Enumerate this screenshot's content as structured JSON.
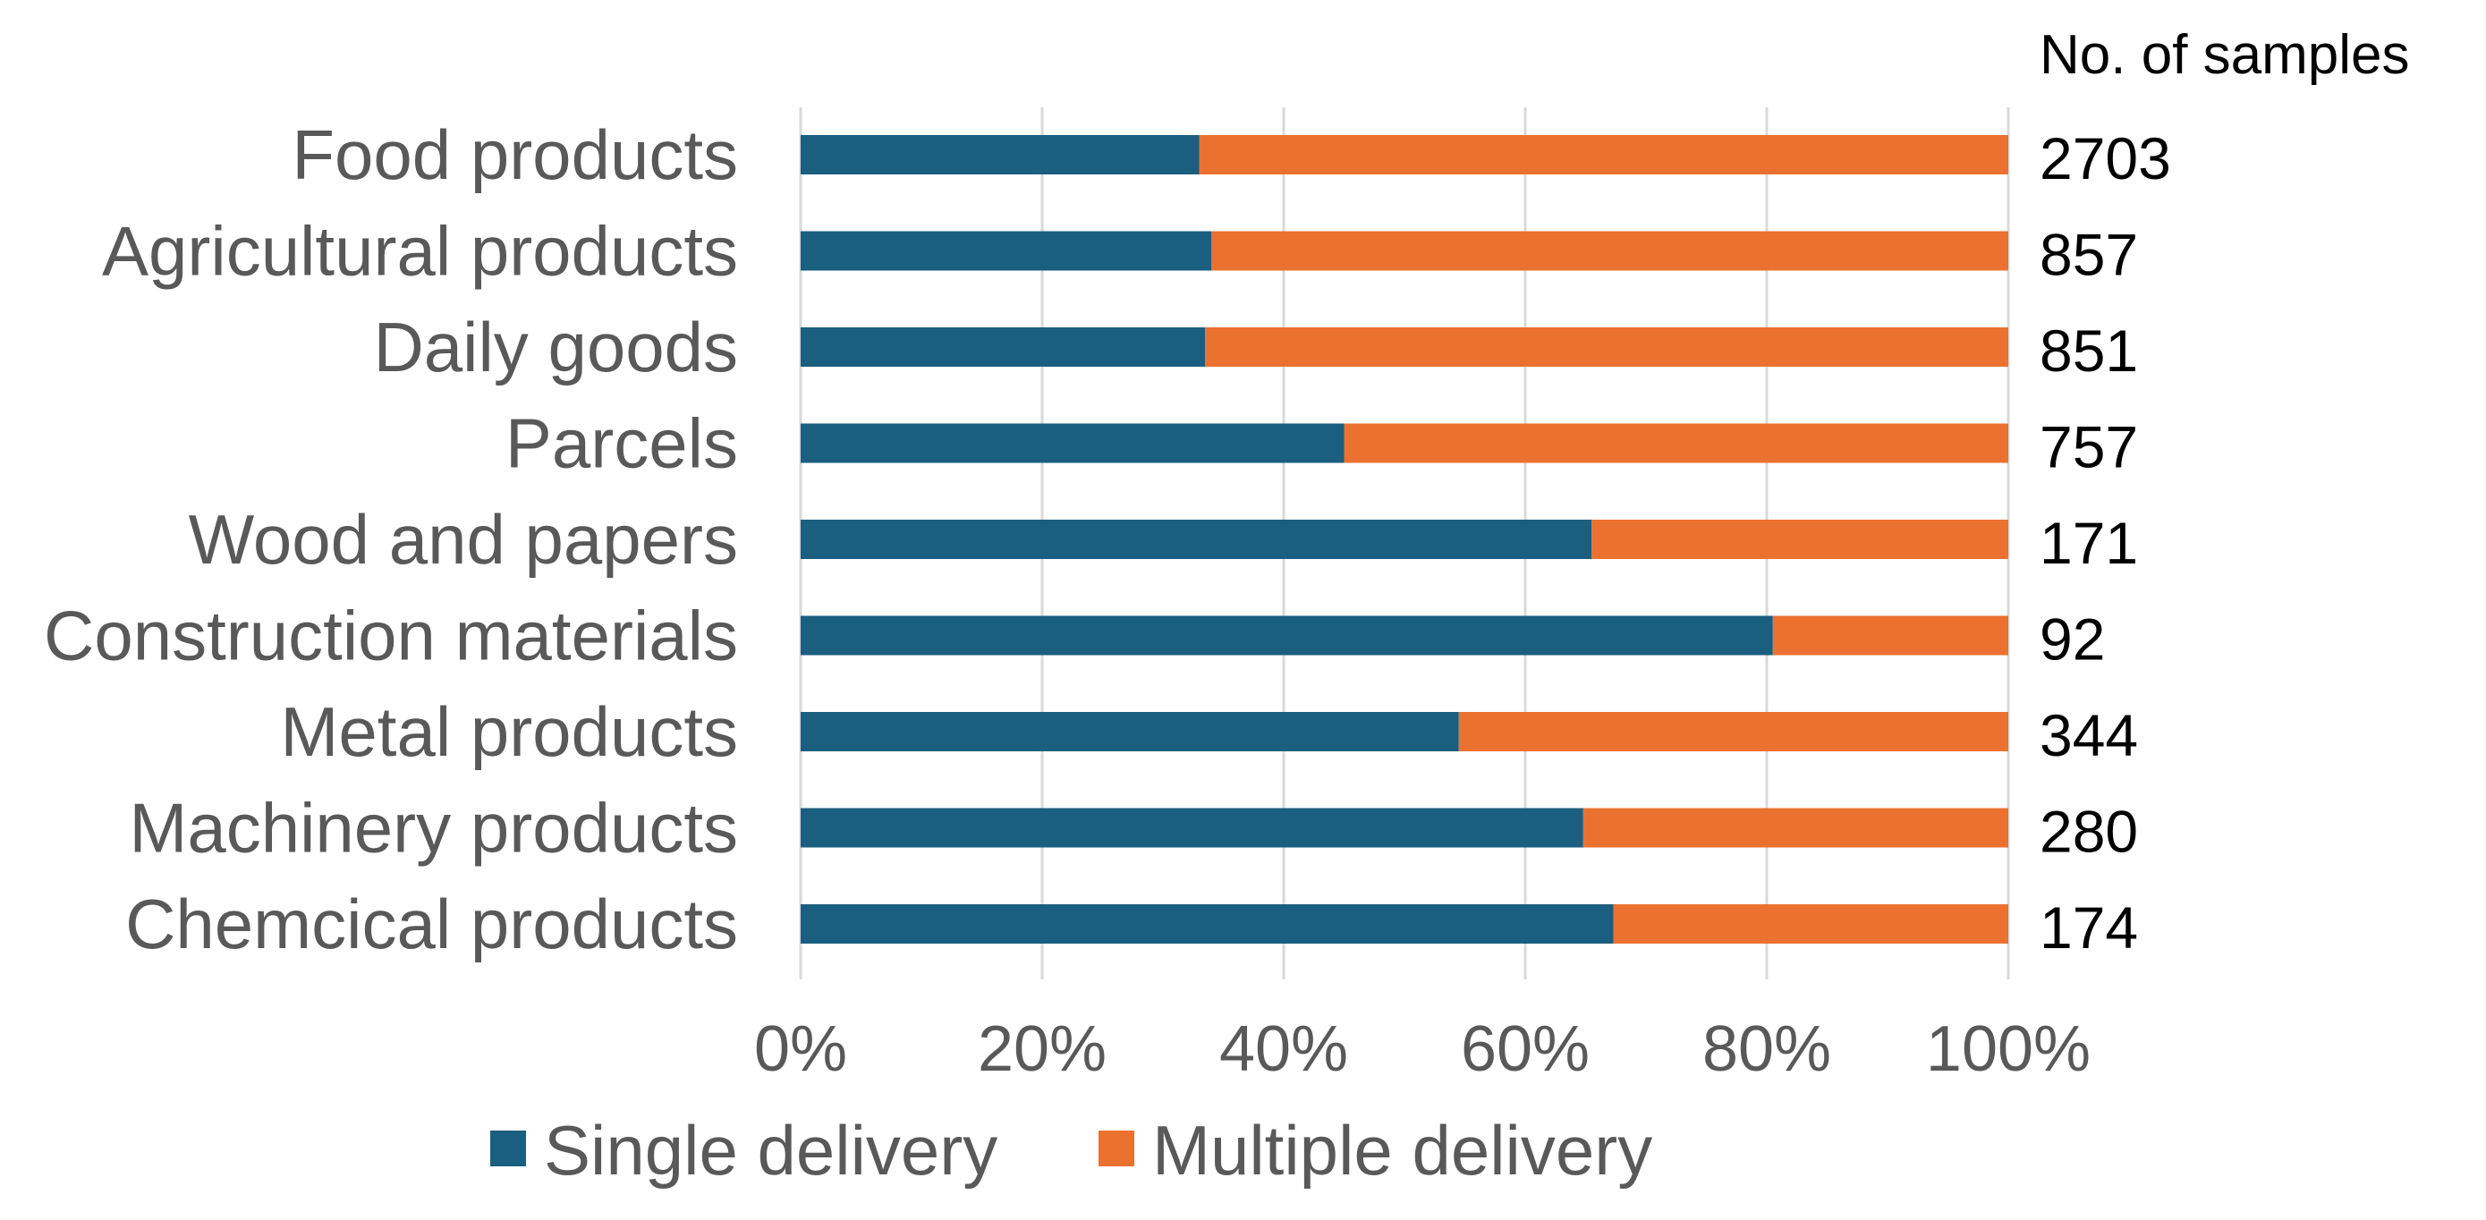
{
  "chart_data": {
    "type": "bar",
    "orientation": "horizontal",
    "stacked": true,
    "percent_stacked": true,
    "categories": [
      "Food products",
      "Agricultural products",
      "Daily goods",
      "Parcels",
      "Wood and papers",
      "Construction materials",
      "Metal products",
      "Machinery products",
      "Chemcical products"
    ],
    "series": [
      {
        "name": "Single delivery",
        "color": "#1a5e80",
        "values": [
          33,
          34,
          33.5,
          45,
          65.5,
          80.5,
          54.5,
          64.8,
          67.3
        ]
      },
      {
        "name": "Multiple delivery",
        "color": "#eb7130",
        "values": [
          67,
          66,
          66.5,
          55,
          34.5,
          19.5,
          45.5,
          35.2,
          32.7
        ]
      }
    ],
    "xlim": [
      0,
      100
    ],
    "x_ticks": [
      "0%",
      "20%",
      "40%",
      "60%",
      "80%",
      "100%"
    ],
    "grid": true,
    "legend": "bottom",
    "sample_counts_title": "No. of samples",
    "sample_counts": [
      "2703",
      "857",
      "851",
      "757",
      "171",
      "92",
      "344",
      "280",
      "174"
    ]
  }
}
